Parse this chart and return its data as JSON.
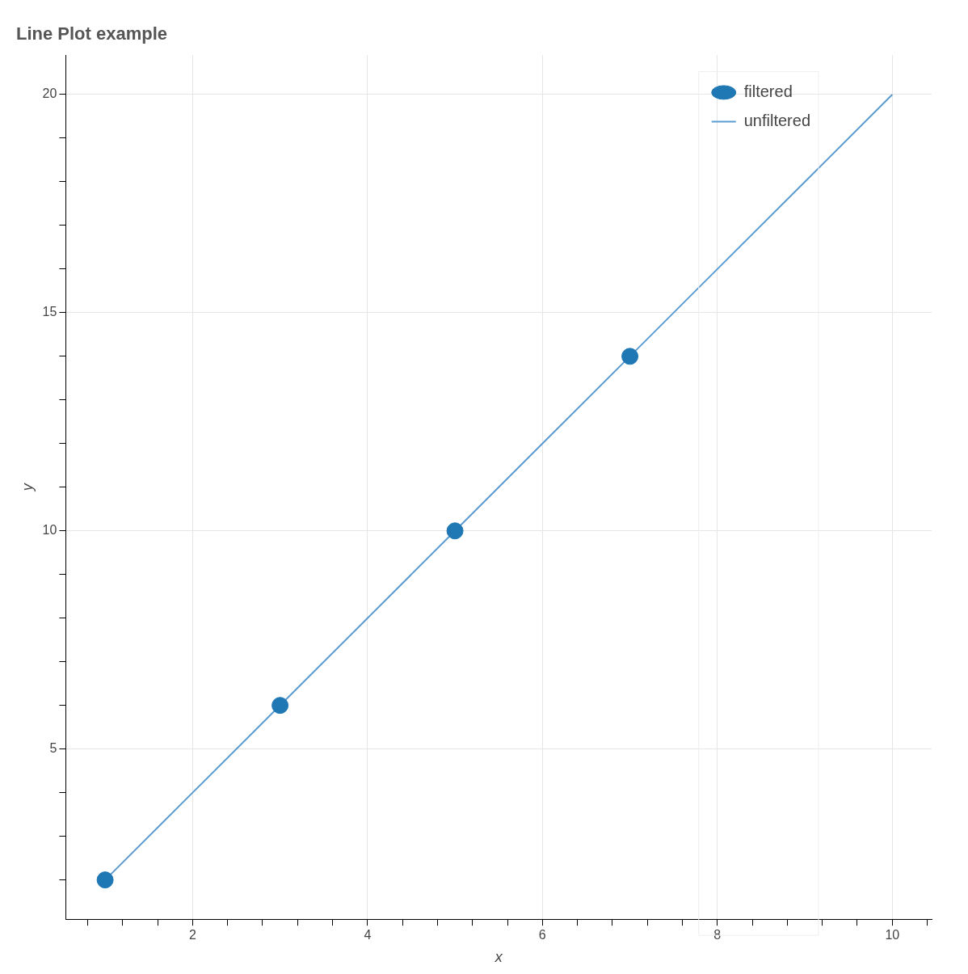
{
  "chart_data": {
    "type": "line",
    "title": "Line Plot example",
    "xlabel": "x",
    "ylabel": "y",
    "xlim": [
      0.55,
      10.45
    ],
    "ylim": [
      1.1,
      20.9
    ],
    "xticks": [
      {
        "value": 0.8,
        "label": null
      },
      {
        "value": 1.2,
        "label": null
      },
      {
        "value": 1.6,
        "label": null
      },
      2,
      {
        "value": 2.4,
        "label": null
      },
      {
        "value": 2.8,
        "label": null
      },
      {
        "value": 3.2,
        "label": null
      },
      {
        "value": 3.6,
        "label": null
      },
      4,
      {
        "value": 4.4,
        "label": null
      },
      {
        "value": 4.8,
        "label": null
      },
      {
        "value": 5.2,
        "label": null
      },
      {
        "value": 5.6,
        "label": null
      },
      6,
      {
        "value": 6.4,
        "label": null
      },
      {
        "value": 6.8,
        "label": null
      },
      {
        "value": 7.2,
        "label": null
      },
      {
        "value": 7.6,
        "label": null
      },
      8,
      {
        "value": 8.4,
        "label": null
      },
      {
        "value": 8.8,
        "label": null
      },
      {
        "value": 9.2,
        "label": null
      },
      {
        "value": 9.6,
        "label": null
      },
      10,
      {
        "value": 10.4,
        "label": null
      }
    ],
    "yticks": [
      {
        "value": 2,
        "label": null
      },
      {
        "value": 3,
        "label": null
      },
      {
        "value": 4,
        "label": null
      },
      5,
      {
        "value": 6,
        "label": null
      },
      {
        "value": 7,
        "label": null
      },
      {
        "value": 8,
        "label": null
      },
      {
        "value": 9,
        "label": null
      },
      10,
      {
        "value": 11,
        "label": null
      },
      {
        "value": 12,
        "label": null
      },
      {
        "value": 13,
        "label": null
      },
      {
        "value": 14,
        "label": null
      },
      15,
      {
        "value": 16,
        "label": null
      },
      {
        "value": 17,
        "label": null
      },
      {
        "value": 18,
        "label": null
      },
      {
        "value": 19,
        "label": null
      },
      20
    ],
    "grid": true,
    "legend": "top right",
    "series": [
      {
        "name": "filtered",
        "type": "scatter",
        "marker": "circle",
        "color": "#1f77b4",
        "x": [
          1,
          3,
          5,
          7
        ],
        "values": [
          2,
          6,
          10,
          14
        ]
      },
      {
        "name": "unfiltered",
        "type": "line",
        "line_style": "solid",
        "color": "#5b9bd0",
        "x": [
          1,
          2,
          3,
          4,
          5,
          6,
          7,
          8,
          9,
          10
        ],
        "values": [
          2,
          4,
          6,
          8,
          10,
          12,
          14,
          16,
          18,
          20
        ]
      }
    ]
  }
}
